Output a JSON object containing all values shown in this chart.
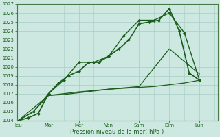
{
  "xlabel": "Pression niveau de la mer( hPa )",
  "background_color": "#cce8e0",
  "grid_color": "#a8ccc4",
  "line_color": "#1a5c1a",
  "ylim": [
    1014,
    1027
  ],
  "yticks": [
    1014,
    1015,
    1016,
    1017,
    1018,
    1019,
    1020,
    1021,
    1022,
    1023,
    1024,
    1025,
    1026,
    1027
  ],
  "x_labels": [
    "Jeu",
    "Mar",
    "Mer",
    "Ven",
    "Sam",
    "Dim",
    "Lun"
  ],
  "x_positions": [
    0,
    1,
    2,
    3,
    4,
    5,
    6
  ],
  "xlim": [
    -0.05,
    6.6
  ],
  "series": [
    {
      "x": [
        0,
        0.33,
        0.66,
        1.0,
        1.33,
        1.66,
        2.0,
        2.33,
        2.66,
        3.0,
        3.33,
        3.66,
        4.0,
        4.33,
        4.66,
        5.0,
        5.33,
        5.66,
        6.0
      ],
      "y": [
        1014,
        1014.3,
        1014.8,
        1017,
        1018.2,
        1019,
        1019.5,
        1020.5,
        1020.5,
        1021.2,
        1022,
        1023,
        1024.8,
        1025,
        1025.2,
        1026.5,
        1024,
        1019.3,
        1018.5
      ],
      "marker": "D",
      "markersize": 2.0,
      "linewidth": 1.2
    },
    {
      "x": [
        0,
        0.5,
        1.0,
        1.5,
        2.0,
        2.5,
        3.0,
        3.5,
        4.0,
        4.5,
        5.0,
        5.5,
        6.0
      ],
      "y": [
        1014,
        1015.0,
        1017,
        1018.5,
        1020.5,
        1020.5,
        1021.2,
        1023.5,
        1025.2,
        1025.2,
        1026.0,
        1023.8,
        1018.5
      ],
      "marker": "D",
      "markersize": 2.0,
      "linewidth": 1.0
    },
    {
      "x": [
        0,
        0.5,
        1.0,
        1.5,
        2.0,
        2.5,
        3.0,
        3.5,
        4.0,
        4.5,
        5.0,
        5.5,
        6.0
      ],
      "y": [
        1014,
        1015.0,
        1016.8,
        1016.9,
        1017.1,
        1017.3,
        1017.5,
        1017.6,
        1017.7,
        1017.8,
        1018.0,
        1018.2,
        1018.5
      ],
      "marker": null,
      "markersize": 0,
      "linewidth": 0.9
    },
    {
      "x": [
        0,
        1.0,
        2.0,
        3.0,
        4.0,
        5.0,
        6.0
      ],
      "y": [
        1014,
        1016.8,
        1017.2,
        1017.5,
        1017.8,
        1022.0,
        1019.2
      ],
      "marker": null,
      "markersize": 0,
      "linewidth": 0.9
    }
  ]
}
